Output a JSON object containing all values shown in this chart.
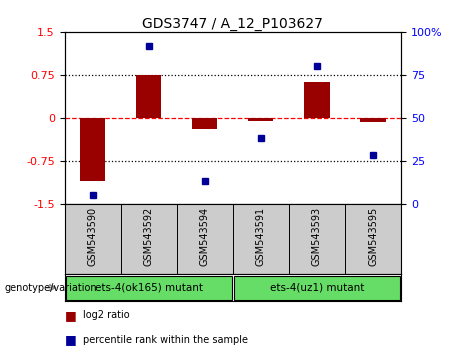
{
  "title": "GDS3747 / A_12_P103627",
  "samples": [
    "GSM543590",
    "GSM543592",
    "GSM543594",
    "GSM543591",
    "GSM543593",
    "GSM543595"
  ],
  "log2_ratio": [
    -1.1,
    0.75,
    -0.2,
    -0.05,
    0.62,
    -0.07
  ],
  "percentile_rank": [
    5,
    92,
    13,
    38,
    80,
    28
  ],
  "groups": [
    {
      "label": "ets-4(ok165) mutant",
      "color": "#66DD66",
      "start": 0,
      "end": 2
    },
    {
      "label": "ets-4(uz1) mutant",
      "color": "#66DD66",
      "start": 3,
      "end": 5
    }
  ],
  "bar_color": "#990000",
  "dot_color": "#000099",
  "ylim_left": [
    -1.5,
    1.5
  ],
  "ylim_right": [
    0,
    100
  ],
  "yticks_left": [
    -1.5,
    -0.75,
    0,
    0.75,
    1.5
  ],
  "yticks_left_labels": [
    "-1.5",
    "-0.75",
    "0",
    "0.75",
    "1.5"
  ],
  "yticks_right": [
    0,
    25,
    50,
    75,
    100
  ],
  "yticks_right_labels": [
    "0",
    "25",
    "50",
    "75",
    "100%"
  ],
  "hlines_dotted": [
    -0.75,
    0.75
  ],
  "hline_dashed_red": 0,
  "sample_bg_color": "#cccccc",
  "group_label": "genotype/variation",
  "legend": [
    {
      "color": "#990000",
      "label": "log2 ratio"
    },
    {
      "color": "#000099",
      "label": "percentile rank within the sample"
    }
  ]
}
